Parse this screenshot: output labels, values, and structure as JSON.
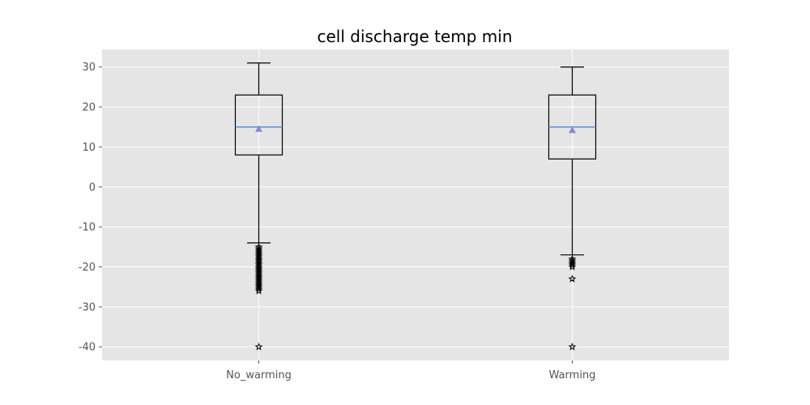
{
  "chart_data": {
    "type": "box",
    "title": "cell discharge temp min",
    "xlabel": "",
    "ylabel": "",
    "ylim": [
      -43.4,
      34.4
    ],
    "yticks": [
      30,
      20,
      10,
      0,
      -10,
      -20,
      -30,
      -40
    ],
    "ytick_labels": [
      "30",
      "20",
      "10",
      "0",
      "-10",
      "-20",
      "-30",
      "-40"
    ],
    "grid": true,
    "categories": [
      "No_warming",
      "Warming"
    ],
    "boxes": [
      {
        "label": "No_warming",
        "whisker_low": -14,
        "q1": 8,
        "median": 15,
        "q3": 23,
        "whisker_high": 31,
        "mean": 14.5,
        "outliers": [
          -15,
          -15.5,
          -16,
          -16.5,
          -17,
          -17.5,
          -18,
          -18.5,
          -19,
          -19.5,
          -20,
          -20.5,
          -21,
          -21.5,
          -22,
          -22.5,
          -23,
          -23.5,
          -24,
          -24.5,
          -25,
          -25.5,
          -26,
          -40
        ]
      },
      {
        "label": "Warming",
        "whisker_low": -17,
        "q1": 7,
        "median": 15,
        "q3": 23,
        "whisker_high": 30,
        "mean": 14.2,
        "outliers": [
          -18,
          -18.5,
          -19,
          -19.5,
          -20,
          -23,
          -40
        ]
      }
    ],
    "colors": {
      "plot_background": "#e5e5e5",
      "grid": "#ffffff",
      "box": "#000000",
      "median": "#5b8fc9",
      "mean_marker": "#8e86d2",
      "outlier": "#000000"
    }
  }
}
